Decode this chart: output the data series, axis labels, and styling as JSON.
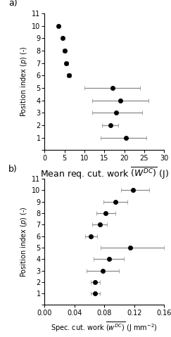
{
  "plot_a": {
    "positions": [
      10,
      9,
      8,
      7,
      6,
      5,
      4,
      3,
      2,
      1
    ],
    "means": [
      3.5,
      4.5,
      5.0,
      5.5,
      6.2,
      17.0,
      19.0,
      18.0,
      16.5,
      20.5
    ],
    "xerr_low": [
      0.2,
      0.3,
      0.5,
      0.5,
      0.5,
      7.0,
      7.0,
      6.0,
      2.0,
      6.5
    ],
    "xerr_high": [
      0.2,
      0.3,
      0.5,
      0.5,
      0.5,
      7.0,
      7.0,
      6.5,
      2.0,
      5.0
    ],
    "xlabel": "Mean req. cut. work $\\overline{(W^{DC})}$ (J)",
    "ylabel": "Position index $(p)$ (-)",
    "xlim": [
      0,
      30
    ],
    "xticks": [
      0,
      5,
      10,
      15,
      20,
      25,
      30
    ],
    "ylim": [
      0,
      11
    ],
    "yticks": [
      0,
      1,
      2,
      3,
      4,
      5,
      6,
      7,
      8,
      9,
      10,
      11
    ],
    "label": "a)"
  },
  "plot_b": {
    "positions": [
      10,
      9,
      8,
      7,
      6,
      5,
      4,
      3,
      2,
      1
    ],
    "means": [
      0.118,
      0.095,
      0.082,
      0.074,
      0.062,
      0.115,
      0.086,
      0.078,
      0.068,
      0.068
    ],
    "xerr_low": [
      0.016,
      0.016,
      0.013,
      0.01,
      0.008,
      0.04,
      0.02,
      0.022,
      0.006,
      0.006
    ],
    "xerr_high": [
      0.022,
      0.016,
      0.013,
      0.01,
      0.008,
      0.045,
      0.02,
      0.022,
      0.006,
      0.006
    ],
    "xlabel": "Spec. cut. work $\\overline{(w^{DC})}$ (J mm$^{-2}$)",
    "ylabel": "Position index $(p)$ (-)",
    "xlim": [
      0,
      0.16
    ],
    "xticks": [
      0,
      0.04,
      0.08,
      0.12,
      0.16
    ],
    "ylim": [
      0,
      11
    ],
    "yticks": [
      0,
      1,
      2,
      3,
      4,
      5,
      6,
      7,
      8,
      9,
      10,
      11
    ],
    "label": "b)"
  },
  "dot_color": "#000000",
  "line_color": "#888888",
  "cap_size": 2.5,
  "line_width": 0.9,
  "marker_size": 4.5
}
